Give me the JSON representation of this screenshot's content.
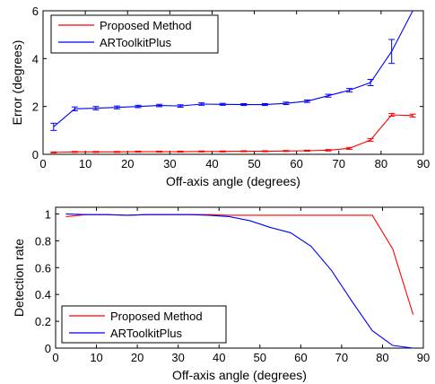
{
  "chart_data": [
    {
      "type": "line",
      "xlabel": "Off-axis angle (degrees)",
      "ylabel": "Error (degrees)",
      "xlim": [
        0,
        90
      ],
      "ylim": [
        0,
        6
      ],
      "xticks": [
        "0",
        "10",
        "20",
        "30",
        "40",
        "50",
        "60",
        "70",
        "80",
        "90"
      ],
      "yticks": [
        "0",
        "2",
        "4",
        "6"
      ],
      "grid": false,
      "error_bars": true,
      "legend": {
        "position": "top-left"
      },
      "x": [
        2.5,
        7.5,
        12.5,
        17.5,
        22.5,
        27.5,
        32.5,
        37.5,
        42.5,
        47.5,
        52.5,
        57.5,
        62.5,
        67.5,
        72.5,
        77.5,
        82.5,
        87.5
      ],
      "series": [
        {
          "name": "Proposed Method",
          "color": "#ff0000",
          "values": [
            0.08,
            0.1,
            0.1,
            0.1,
            0.11,
            0.11,
            0.11,
            0.12,
            0.12,
            0.13,
            0.13,
            0.14,
            0.15,
            0.17,
            0.25,
            0.6,
            1.65,
            1.62
          ],
          "errors": [
            0.02,
            0.02,
            0.02,
            0.02,
            0.02,
            0.02,
            0.02,
            0.02,
            0.02,
            0.02,
            0.02,
            0.02,
            0.02,
            0.03,
            0.04,
            0.06,
            0.06,
            0.06
          ]
        },
        {
          "name": "ARToolkitPlus",
          "color": "#0000ff",
          "values": [
            1.15,
            1.9,
            1.93,
            1.96,
            2.0,
            2.04,
            2.02,
            2.1,
            2.09,
            2.08,
            2.08,
            2.13,
            2.22,
            2.45,
            2.68,
            3.0,
            4.3,
            6.0
          ],
          "errors": [
            0.15,
            0.08,
            0.07,
            0.06,
            0.05,
            0.05,
            0.05,
            0.05,
            0.04,
            0.04,
            0.04,
            0.05,
            0.05,
            0.06,
            0.07,
            0.13,
            0.5,
            0
          ]
        }
      ]
    },
    {
      "type": "line",
      "xlabel": "Off-axis angle (degrees)",
      "ylabel": "Detection rate",
      "xlim": [
        0,
        90
      ],
      "ylim": [
        0,
        1.05
      ],
      "xticks": [
        "0",
        "10",
        "20",
        "30",
        "40",
        "50",
        "60",
        "70",
        "80",
        "90"
      ],
      "yticks": [
        "0",
        "0.2",
        "0.4",
        "0.6",
        "0.8",
        "1"
      ],
      "grid": false,
      "legend": {
        "position": "bottom-left"
      },
      "x": [
        2.5,
        7.5,
        12.5,
        17.5,
        22.5,
        27.5,
        32.5,
        37.5,
        42.5,
        47.5,
        52.5,
        57.5,
        62.5,
        67.5,
        72.5,
        77.5,
        82.5,
        87.5
      ],
      "series": [
        {
          "name": "Proposed Method",
          "color": "#ff0000",
          "values": [
            0.98,
            0.995,
            0.995,
            0.99,
            0.995,
            0.995,
            0.995,
            0.995,
            0.99,
            0.99,
            0.99,
            0.99,
            0.99,
            0.99,
            0.99,
            0.99,
            0.74,
            0.25
          ]
        },
        {
          "name": "ARToolkitPlus",
          "color": "#0000ff",
          "values": [
            1.0,
            0.995,
            0.995,
            0.99,
            0.995,
            0.995,
            0.995,
            0.99,
            0.98,
            0.95,
            0.9,
            0.86,
            0.76,
            0.58,
            0.35,
            0.13,
            0.02,
            0.0
          ]
        }
      ]
    }
  ]
}
